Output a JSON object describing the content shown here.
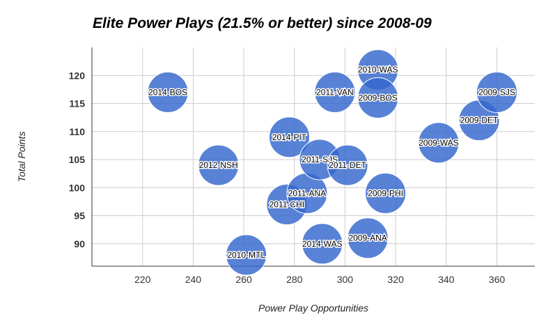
{
  "chart_data": {
    "type": "bubble",
    "title": "Elite Power Plays (21.5% or better) since 2008-09",
    "xlabel": "Power Play Opportunities",
    "ylabel": "Total Points",
    "xlim": [
      200,
      375
    ],
    "ylim": [
      86,
      125
    ],
    "x_ticks": [
      220,
      240,
      260,
      280,
      300,
      320,
      340,
      360
    ],
    "y_ticks": [
      90,
      95,
      100,
      105,
      110,
      115,
      120
    ],
    "grid": true,
    "bubble_color": "#3366cc",
    "points": [
      {
        "label": "2014-BOS",
        "x": 230,
        "y": 117
      },
      {
        "label": "2012-NSH",
        "x": 250,
        "y": 104
      },
      {
        "label": "2010-MTL",
        "x": 261,
        "y": 88
      },
      {
        "label": "2011-CHI",
        "x": 277,
        "y": 97
      },
      {
        "label": "2014-PIT",
        "x": 278,
        "y": 109
      },
      {
        "label": "2011-ANA",
        "x": 285,
        "y": 99
      },
      {
        "label": "2011-SJS",
        "x": 290,
        "y": 105
      },
      {
        "label": "2014-WAS",
        "x": 291,
        "y": 90
      },
      {
        "label": "2011-VAN",
        "x": 296,
        "y": 117
      },
      {
        "label": "2011-DET",
        "x": 301,
        "y": 104
      },
      {
        "label": "2009-ANA",
        "x": 309,
        "y": 91
      },
      {
        "label": "2010-WAS",
        "x": 313,
        "y": 121
      },
      {
        "label": "2009-BOS",
        "x": 313,
        "y": 116
      },
      {
        "label": "2009-PHI",
        "x": 316,
        "y": 99
      },
      {
        "label": "2009-WAS",
        "x": 337,
        "y": 108
      },
      {
        "label": "2009-DET",
        "x": 353,
        "y": 112
      },
      {
        "label": "2009-SJS",
        "x": 360,
        "y": 117
      }
    ]
  }
}
